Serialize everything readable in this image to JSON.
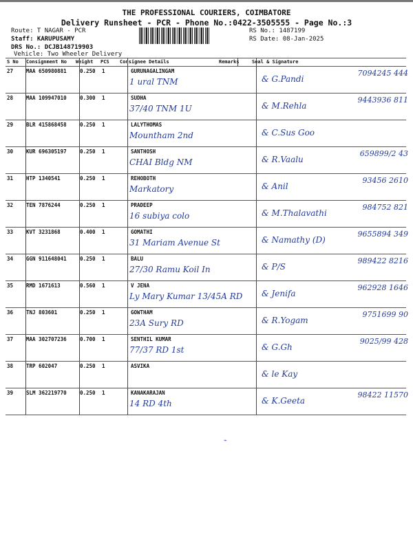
{
  "header": {
    "company": "THE PROFESSIONAL COURIERS, COIMBATORE",
    "subtitle": "Delivery Runsheet - PCR - Phone No.:0422-3505555 - Page No.:3",
    "route": "Route: T NAGAR - PCR",
    "staff": "Staff: KARUPUSAMY",
    "drs": "DRS No.: DCJB148719903",
    "vehicle": "Vehicle: Two Wheeler Delivery",
    "rs_no": "RS No.: 1487199",
    "rs_date": "RS Date: 08-Jan-2025"
  },
  "columns": [
    "S No",
    "Consignment No",
    "Weight",
    "PCS",
    "Consignee Details",
    "Remarks",
    "Seal & Signature"
  ],
  "rows": [
    {
      "sno": "27",
      "cons": "MAA 650980881",
      "weight": "0.250",
      "pcs": "1",
      "name": "GURUNAGALINGAM",
      "addr": "1 ural TNM",
      "sig": "& G.Pandi",
      "phone": "7094245 444"
    },
    {
      "sno": "28",
      "cons": "MAA 109947010",
      "weight": "0.300",
      "pcs": "1",
      "name": "SUDHA",
      "addr": "37/40 TNM 1U",
      "sig": "& M.Rehla",
      "phone": "9443936 811"
    },
    {
      "sno": "29",
      "cons": "BLR 415868458",
      "weight": "0.250",
      "pcs": "1",
      "name": "LALYTHOMAS",
      "addr": "Mountham 2nd",
      "sig": "& C.Sus Goo",
      "phone": ""
    },
    {
      "sno": "30",
      "cons": "KUR 696305197",
      "weight": "0.250",
      "pcs": "1",
      "name": "SANTHOSH",
      "addr": "CHAI Bldg NM",
      "sig": "& R.Vaalu",
      "phone": "659899/2 43"
    },
    {
      "sno": "31",
      "cons": "HTP 1340541",
      "weight": "0.250",
      "pcs": "1",
      "name": "REHOBOTH",
      "addr": "Markatory",
      "sig": "& Anil",
      "phone": "93456 2610"
    },
    {
      "sno": "32",
      "cons": "TEN 7876244",
      "weight": "0.250",
      "pcs": "1",
      "name": "PRADEEP",
      "addr": "16 subiya colo",
      "sig": "& M.Thalavathi",
      "phone": "984752 821"
    },
    {
      "sno": "33",
      "cons": "KVT 3231868",
      "weight": "0.400",
      "pcs": "1",
      "name": "GOMATHI",
      "addr": "31 Mariam Avenue St",
      "sig": "& Namathy (D)",
      "phone": "9655894 349"
    },
    {
      "sno": "34",
      "cons": "GGN 911648041",
      "weight": "0.250",
      "pcs": "1",
      "name": "BALU",
      "addr": "27/30 Ramu Koil In",
      "sig": "& P/S",
      "phone": "989422 8216"
    },
    {
      "sno": "35",
      "cons": "RMD 1671613",
      "weight": "0.560",
      "pcs": "1",
      "name": "V JENA",
      "addr": "Ly Mary Kumar 13/45A RD",
      "sig": "& Jenifa",
      "phone": "962928 1646"
    },
    {
      "sno": "36",
      "cons": "TNJ 803601",
      "weight": "0.250",
      "pcs": "1",
      "name": "GOWTHAM",
      "addr": "23A Sury RD",
      "sig": "& R.Yogam",
      "phone": "9751699 90"
    },
    {
      "sno": "37",
      "cons": "MAA 302707236",
      "weight": "0.700",
      "pcs": "1",
      "name": "SENTHIL KUMAR",
      "addr": "77/37 RD 1st",
      "sig": "& G.Gh",
      "phone": "9025/99 428"
    },
    {
      "sno": "38",
      "cons": "TRP 602047",
      "weight": "0.250",
      "pcs": "1",
      "name": "ASVIKA",
      "addr": "",
      "sig": "& le Kay",
      "phone": ""
    },
    {
      "sno": "39",
      "cons": "SLM 362219770",
      "weight": "0.250",
      "pcs": "1",
      "name": "KANAKARAJAN",
      "addr": "14 RD 4th",
      "sig": "& K.Geeta",
      "phone": "98422 11570"
    }
  ],
  "colors": {
    "ink": "#223a9a",
    "text": "#111111"
  }
}
